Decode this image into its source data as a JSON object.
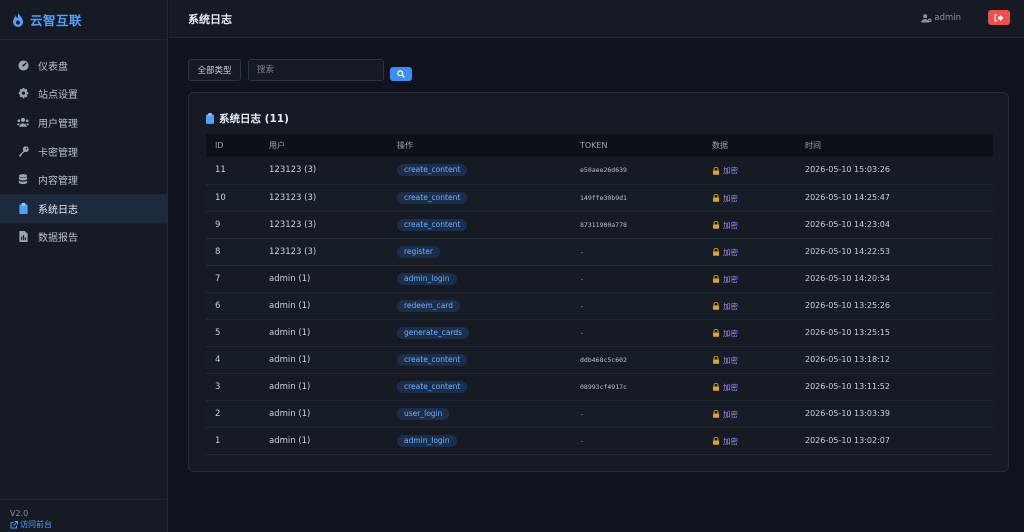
{
  "brand": {
    "name": "云智互联"
  },
  "sidebar": {
    "items": [
      {
        "label": "仪表盘",
        "icon": "dashboard-icon",
        "active": false
      },
      {
        "label": "站点设置",
        "icon": "gear-icon",
        "active": false
      },
      {
        "label": "用户管理",
        "icon": "users-icon",
        "active": false
      },
      {
        "label": "卡密管理",
        "icon": "key-icon",
        "active": false
      },
      {
        "label": "内容管理",
        "icon": "database-icon",
        "active": false
      },
      {
        "label": "系统日志",
        "icon": "clipboard-icon",
        "active": true
      },
      {
        "label": "数据报告",
        "icon": "report-icon",
        "active": false
      }
    ],
    "version": "V2.0",
    "visit_label": "访问前台"
  },
  "header": {
    "title": "系统日志",
    "user": "admin"
  },
  "filter": {
    "type_label": "全部类型",
    "search_placeholder": "搜索"
  },
  "card": {
    "title": "系统日志 (11)"
  },
  "table": {
    "headers": [
      "ID",
      "用户",
      "操作",
      "TOKEN",
      "数据",
      "时间"
    ],
    "rows": [
      {
        "id": "11",
        "user": "123123 (3)",
        "op": "create_content",
        "token": "e50aee26d639",
        "data": "加密",
        "time": "2026-05-10 15:03:26"
      },
      {
        "id": "10",
        "user": "123123 (3)",
        "op": "create_content",
        "token": "149ffe30b9d1",
        "data": "加密",
        "time": "2026-05-10 14:25:47"
      },
      {
        "id": "9",
        "user": "123123 (3)",
        "op": "create_content",
        "token": "87311900a778",
        "data": "加密",
        "time": "2026-05-10 14:23:04"
      },
      {
        "id": "8",
        "user": "123123 (3)",
        "op": "register",
        "token": "-",
        "data": "加密",
        "time": "2026-05-10 14:22:53"
      },
      {
        "id": "7",
        "user": "admin (1)",
        "op": "admin_login",
        "token": "-",
        "data": "加密",
        "time": "2026-05-10 14:20:54"
      },
      {
        "id": "6",
        "user": "admin (1)",
        "op": "redeem_card",
        "token": "-",
        "data": "加密",
        "time": "2026-05-10 13:25:26"
      },
      {
        "id": "5",
        "user": "admin (1)",
        "op": "generate_cards",
        "token": "-",
        "data": "加密",
        "time": "2026-05-10 13:25:15"
      },
      {
        "id": "4",
        "user": "admin (1)",
        "op": "create_content",
        "token": "ddb468c5c602",
        "data": "加密",
        "time": "2026-05-10 13:18:12"
      },
      {
        "id": "3",
        "user": "admin (1)",
        "op": "create_content",
        "token": "08993cf4917c",
        "data": "加密",
        "time": "2026-05-10 13:11:52"
      },
      {
        "id": "2",
        "user": "admin (1)",
        "op": "user_login",
        "token": "-",
        "data": "加密",
        "time": "2026-05-10 13:03:39"
      },
      {
        "id": "1",
        "user": "admin (1)",
        "op": "admin_login",
        "token": "-",
        "data": "加密",
        "time": "2026-05-10 13:02:07"
      }
    ]
  },
  "colors": {
    "accent": "#4ea1ff",
    "danger": "#f04d4d",
    "badge_bg": "#1c2f4a",
    "encrypted": "#a78bfa"
  }
}
